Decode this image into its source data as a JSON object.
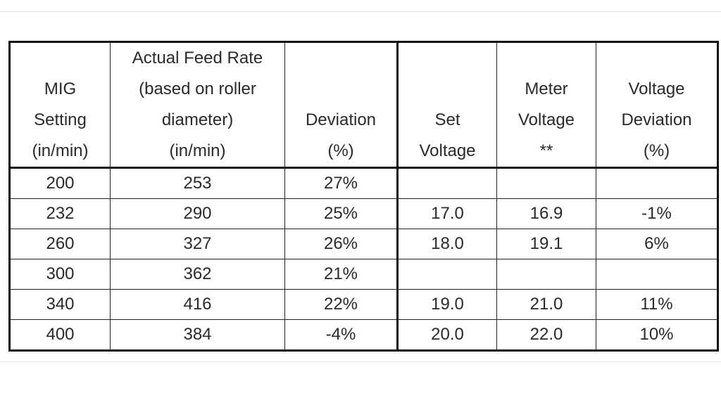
{
  "table": {
    "header": [
      [
        "MIG",
        "Setting",
        "(in/min)"
      ],
      [
        "Actual Feed Rate",
        "(based on roller",
        "diameter)",
        "(in/min)"
      ],
      [
        "Deviation",
        "(%)"
      ],
      [
        "Set",
        "Voltage"
      ],
      [
        "Meter",
        "Voltage",
        "**"
      ],
      [
        "Voltage",
        "Deviation",
        "(%)"
      ]
    ],
    "rows": [
      [
        "200",
        "253",
        "27%",
        null,
        null,
        null
      ],
      [
        "232",
        "290",
        "25%",
        "17.0",
        "16.9",
        "-1%"
      ],
      [
        "260",
        "327",
        "26%",
        "18.0",
        "19.1",
        "6%"
      ],
      [
        "300",
        "362",
        "21%",
        null,
        null,
        null
      ],
      [
        "340",
        "416",
        "22%",
        "19.0",
        "21.0",
        "11%"
      ],
      [
        "400",
        "384",
        "-4%",
        "20.0",
        "22.0",
        "10%"
      ]
    ]
  }
}
